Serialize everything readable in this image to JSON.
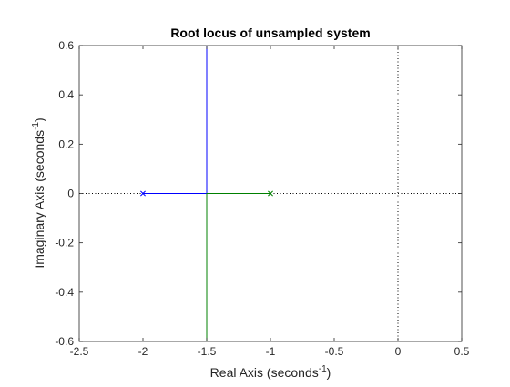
{
  "chart_data": {
    "type": "line",
    "title": "Root locus of unsampled system",
    "xlabel": "Real Axis (seconds",
    "xlabel_sup": "-1",
    "xlabel_end": ")",
    "ylabel": "Imaginary Axis (seconds",
    "ylabel_sup": "-1",
    "ylabel_end": ")",
    "xlim": [
      -2.5,
      0.5
    ],
    "ylim": [
      -0.6,
      0.6
    ],
    "xticks": [
      -2.5,
      -2,
      -1.5,
      -1,
      -0.5,
      0,
      0.5
    ],
    "xtick_labels": [
      "-2.5",
      "-2",
      "-1.5",
      "-1",
      "-0.5",
      "0",
      "0.5"
    ],
    "yticks": [
      -0.6,
      -0.4,
      -0.2,
      0,
      0.2,
      0.4,
      0.6
    ],
    "ytick_labels": [
      "-0.6",
      "-0.4",
      "-0.2",
      "0",
      "0.2",
      "0.4",
      "0.6"
    ],
    "grid": false,
    "reference_lines": [
      {
        "orientation": "horizontal",
        "value": 0,
        "style": "dotted"
      },
      {
        "orientation": "vertical",
        "value": 0,
        "style": "dotted"
      }
    ],
    "series": [
      {
        "color": "#0000ff",
        "x": [
          -2,
          -1.5,
          -1.5
        ],
        "y": [
          0,
          0,
          0.6
        ]
      },
      {
        "color": "#008000",
        "x": [
          -1,
          -1.5,
          -1.5
        ],
        "y": [
          0,
          0,
          -0.6
        ]
      }
    ],
    "poles": [
      {
        "x": -2,
        "y": 0,
        "color": "#0000ff"
      },
      {
        "x": -1,
        "y": 0,
        "color": "#008000"
      }
    ]
  }
}
